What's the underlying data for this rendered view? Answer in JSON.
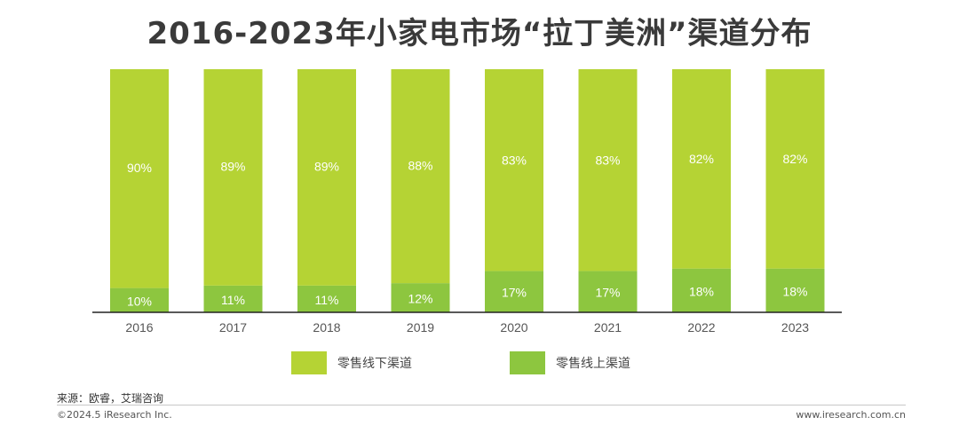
{
  "title": "2016-2023年小家电市场“拉丁美洲”渠道分布",
  "chart_data": {
    "type": "bar",
    "stacked": true,
    "percent_stacked": true,
    "categories": [
      "2016",
      "2017",
      "2018",
      "2019",
      "2020",
      "2021",
      "2022",
      "2023"
    ],
    "series": [
      {
        "name": "零售线上渠道",
        "values": [
          10,
          11,
          11,
          12,
          17,
          17,
          18,
          18
        ],
        "labels": [
          "10%",
          "11%",
          "11%",
          "12%",
          "17%",
          "17%",
          "18%",
          "18%"
        ],
        "color": "#8dc63f"
      },
      {
        "name": "零售线下渠道",
        "values": [
          90,
          89,
          89,
          88,
          83,
          83,
          82,
          82
        ],
        "labels": [
          "90%",
          "89%",
          "89%",
          "88%",
          "83%",
          "83%",
          "82%",
          "82%"
        ],
        "color": "#b5d334"
      }
    ],
    "ylim": [
      0,
      100
    ],
    "grid": false,
    "legend_position": "bottom"
  },
  "legend": [
    {
      "label": "零售线下渠道",
      "color": "#b5d334"
    },
    {
      "label": "零售线上渠道",
      "color": "#8dc63f"
    }
  ],
  "footer": {
    "source": "来源：欧睿，艾瑞咨询",
    "copyright": "©2024.5 iResearch Inc.",
    "website": "www.iresearch.com.cn"
  }
}
